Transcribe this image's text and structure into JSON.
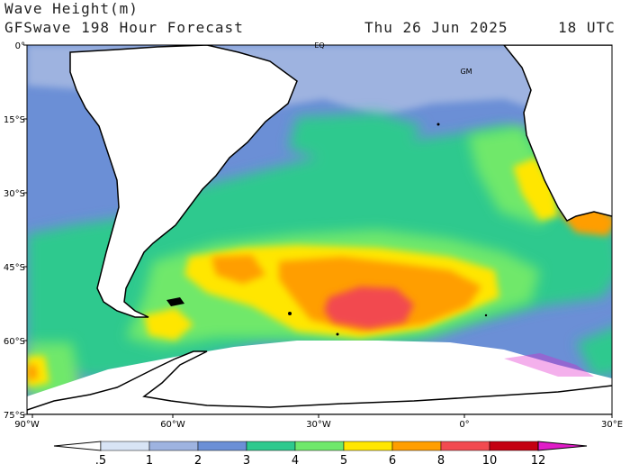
{
  "header": {
    "title": "Wave Height(m)",
    "model": "GFSwave 198 Hour Forecast",
    "date": "Thu 26 Jun 2025",
    "time": "18 UTC"
  },
  "map": {
    "lat_labels": [
      "0°",
      "15°S",
      "30°S",
      "45°S",
      "60°S",
      "75°S"
    ],
    "lon_labels": [
      "90°W",
      "60°W",
      "30°W",
      "0°",
      "30°E"
    ],
    "markers": {
      "eq": "EQ",
      "gm": "GM"
    }
  },
  "colorbar": {
    "labels": [
      ".5",
      "1",
      "2",
      "3",
      "4",
      "5",
      "6",
      "8",
      "10",
      "12"
    ],
    "colors": [
      "#ffffff",
      "#d8e4f5",
      "#9eb3e0",
      "#6b8fd6",
      "#2ec98e",
      "#6fe86b",
      "#ffe600",
      "#ff9e00",
      "#f24a50",
      "#c40012",
      "#e01cc8"
    ]
  }
}
